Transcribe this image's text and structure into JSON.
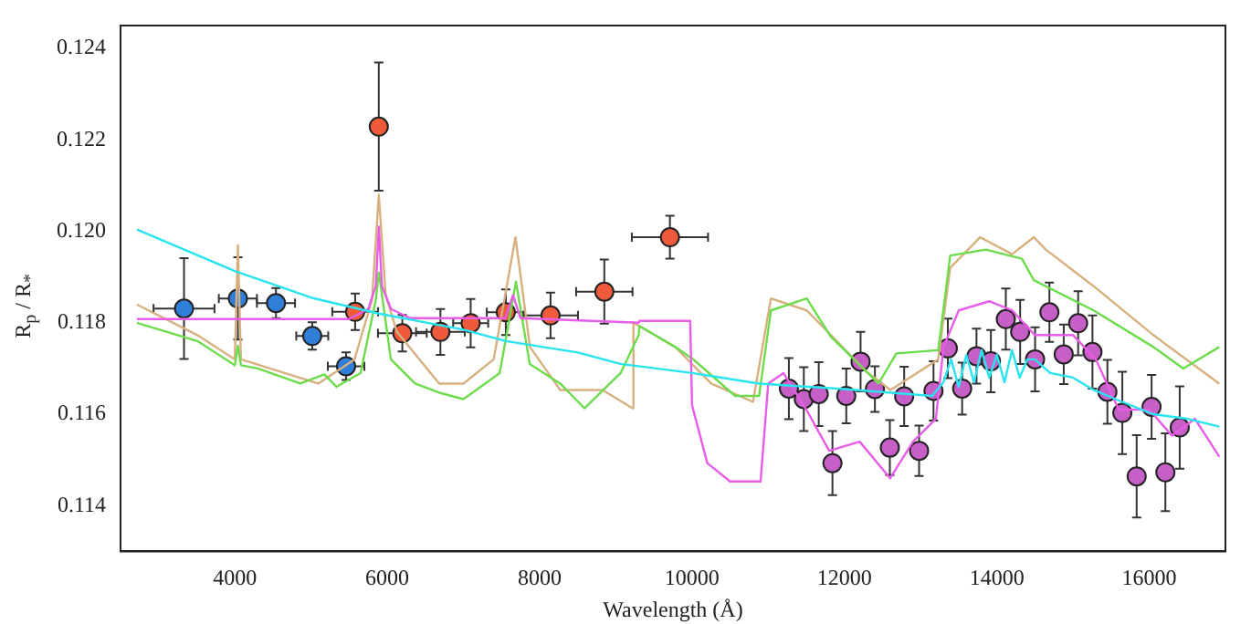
{
  "chart_data": {
    "type": "scatter",
    "xlabel": "Wavelength (Å)",
    "ylabel": "R$_{p}$ / R$_{*}$",
    "xlim": [
      2500,
      17000
    ],
    "ylim": [
      0.113,
      0.1245
    ],
    "xticks": [
      4000,
      6000,
      8000,
      10000,
      12000,
      14000,
      16000
    ],
    "yticks": [
      0.114,
      0.116,
      0.118,
      {
        "value": 0.12,
        "label": "0.120"
      },
      0.122,
      0.124
    ],
    "grid": false,
    "legend": false,
    "series": [
      {
        "type": "line",
        "marker": "none",
        "color": "#28e4f0",
        "x": [
          2714,
          4000,
          5000,
          5890,
          7000,
          7556,
          8500,
          9060,
          10000,
          10880,
          12000,
          13150,
          13300,
          13400,
          13500,
          13600,
          13700,
          13800,
          13900,
          14000,
          14100,
          14200,
          14300,
          14400,
          14500,
          14700,
          15000,
          15270,
          15600,
          16055,
          16500,
          16920
        ],
        "values": [
          0.12004,
          0.11913,
          0.11855,
          0.1182,
          0.11785,
          0.1176,
          0.11735,
          0.1171,
          0.1169,
          0.11667,
          0.11655,
          0.1164,
          0.1167,
          0.1172,
          0.1166,
          0.1173,
          0.1167,
          0.1174,
          0.1168,
          0.1173,
          0.1167,
          0.1174,
          0.1168,
          0.1172,
          0.1172,
          0.1169,
          0.1168,
          0.11653,
          0.1163,
          0.116,
          0.1159,
          0.11573
        ]
      },
      {
        "type": "line",
        "marker": "none",
        "color": "#e85ce8",
        "x": [
          2714,
          5500,
          5750,
          5850,
          5890,
          5930,
          6050,
          6300,
          7550,
          7650,
          7750,
          9300,
          9310,
          9976,
          10000,
          10200,
          10500,
          10900,
          11000,
          11200,
          11500,
          11800,
          12200,
          12600,
          12900,
          13200,
          13300,
          13500,
          13900,
          14200,
          14500,
          15000,
          15300,
          15600,
          16000,
          16300,
          16600,
          16920
        ],
        "values": [
          0.11808,
          0.11808,
          0.1183,
          0.1188,
          0.1201,
          0.1188,
          0.1183,
          0.1181,
          0.1181,
          0.1186,
          0.1181,
          0.118,
          0.11804,
          0.11804,
          0.1162,
          0.11493,
          0.11453,
          0.11453,
          0.11667,
          0.1169,
          0.1161,
          0.1152,
          0.1154,
          0.1146,
          0.1154,
          0.1159,
          0.11747,
          0.11827,
          0.11847,
          0.11827,
          0.11773,
          0.11773,
          0.1172,
          0.1161,
          0.1161,
          0.11553,
          0.1159,
          0.11507
        ]
      },
      {
        "type": "line",
        "marker": "none",
        "color": "#6ddc4c",
        "x": [
          2714,
          3508,
          4000,
          4040,
          4080,
          4300,
          4860,
          5175,
          5333,
          5650,
          5850,
          5890,
          6048,
          6365,
          6683,
          7000,
          7476,
          7690,
          7870,
          8270,
          8587,
          9063,
          9300,
          9310,
          9780,
          10016,
          10565,
          10880,
          11035,
          11506,
          11820,
          12447,
          12682,
          13231,
          13388,
          13859,
          14329,
          14486,
          15270,
          16055,
          16447,
          16918
        ],
        "values": [
          0.118,
          0.1176,
          0.11707,
          0.1175,
          0.11707,
          0.117,
          0.11667,
          0.11687,
          0.1166,
          0.1169,
          0.1185,
          0.1191,
          0.1172,
          0.11667,
          0.11647,
          0.11633,
          0.1169,
          0.1189,
          0.1171,
          0.11667,
          0.11613,
          0.1169,
          0.11773,
          0.11793,
          0.11747,
          0.1172,
          0.1164,
          0.1164,
          0.11827,
          0.11853,
          0.1177,
          0.11667,
          0.11733,
          0.1174,
          0.11947,
          0.1196,
          0.1194,
          0.11893,
          0.11827,
          0.11747,
          0.117,
          0.11747
        ]
      },
      {
        "type": "line",
        "marker": "none",
        "color": "#d8b080",
        "x": [
          2714,
          3508,
          4000,
          4040,
          4080,
          5095,
          5571,
          5800,
          5889,
          5980,
          6127,
          6683,
          7000,
          7397,
          7683,
          7873,
          8270,
          8825,
          9220,
          9231,
          9780,
          10251,
          10800,
          11035,
          11506,
          12290,
          12604,
          13231,
          13388,
          13780,
          14200,
          14486,
          14643,
          15270,
          16055,
          16918
        ],
        "values": [
          0.1184,
          0.11773,
          0.1172,
          0.1197,
          0.1172,
          0.11667,
          0.1172,
          0.1185,
          0.1208,
          0.1186,
          0.1178,
          0.11667,
          0.11667,
          0.1172,
          0.11987,
          0.11747,
          0.11653,
          0.11653,
          0.11613,
          0.118,
          0.11747,
          0.11667,
          0.11627,
          0.11853,
          0.11827,
          0.11693,
          0.11653,
          0.1172,
          0.1192,
          0.11987,
          0.1195,
          0.11987,
          0.1196,
          0.1188,
          0.11773,
          0.11667
        ]
      },
      {
        "type": "scatter",
        "marker": "circle",
        "color": "#2f7fd8",
        "x": [
          3333,
          4040,
          4540,
          5016,
          5460
        ],
        "values": [
          0.11831,
          0.11853,
          0.11843,
          0.11771,
          0.11705
        ],
        "errors": [
          0.0011,
          0.0009,
          0.00033,
          0.0003,
          0.0003
        ],
        "xerrors": [
          400,
          250,
          250,
          210,
          240
        ]
      },
      {
        "type": "scatter",
        "marker": "circle",
        "color": "#ee5a3a",
        "x": [
          5579,
          5889,
          6198,
          6698,
          7095,
          7556,
          8143,
          8849,
          9710
        ],
        "values": [
          0.11824,
          0.12229,
          0.11777,
          0.1178,
          0.11799,
          0.11823,
          0.11816,
          0.11868,
          0.11987
        ],
        "errors": [
          0.0004,
          0.0014,
          0.0004,
          0.0005,
          0.00053,
          0.0005,
          0.0005,
          0.0007,
          0.00047
        ],
        "xerrors": [
          300,
          0,
          320,
          320,
          230,
          250,
          360,
          370,
          500
        ]
      },
      {
        "type": "scatter",
        "marker": "circle",
        "color": "#c660c6",
        "x": [
          11271,
          11467,
          11663,
          11843,
          12024,
          12212,
          12400,
          12596,
          12784,
          12980,
          13169,
          13357,
          13545,
          13733,
          13922,
          14118,
          14306,
          14502,
          14690,
          14878,
          15067,
          15255,
          15451,
          15647,
          15835,
          16031,
          16212,
          16400
        ],
        "values": [
          0.11656,
          0.11633,
          0.11644,
          0.11493,
          0.1164,
          0.11715,
          0.11655,
          0.11527,
          0.11639,
          0.1152,
          0.11651,
          0.11744,
          0.11656,
          0.11727,
          0.11716,
          0.11808,
          0.1178,
          0.1172,
          0.11823,
          0.11731,
          0.11799,
          0.11736,
          0.11649,
          0.11603,
          0.11464,
          0.11616,
          0.11473,
          0.11571
        ],
        "errors": [
          0.00067,
          0.0007,
          0.0007,
          0.0007,
          0.0006,
          0.00065,
          0.0005,
          0.0006,
          0.00065,
          0.00055,
          0.00065,
          0.00065,
          0.00057,
          0.0006,
          0.00068,
          0.00067,
          0.0007,
          0.0007,
          0.00065,
          0.00065,
          0.0007,
          0.0008,
          0.0007,
          0.0009,
          0.0009,
          0.0007,
          0.00085,
          0.0009
        ]
      }
    ]
  }
}
